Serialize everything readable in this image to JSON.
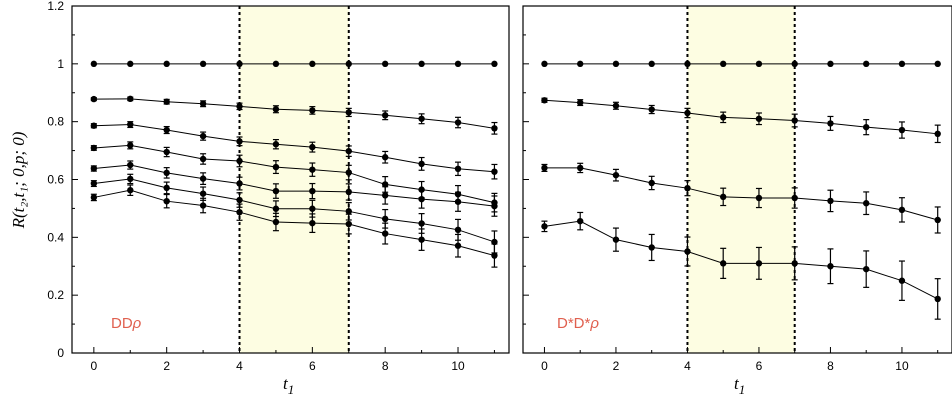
{
  "chart_data": [
    {
      "type": "line",
      "panel_label": "DD",
      "panel_label_symbol": "ρ",
      "xlabel": "t",
      "xlabel_sub": "1",
      "ylabel": "R(t₂,t₁; 0,p; 0)",
      "xlim": [
        -0.6,
        11.4
      ],
      "ylim": [
        0,
        1.2
      ],
      "x_ticks": [
        0,
        2,
        4,
        6,
        8,
        10
      ],
      "y_ticks": [
        "0",
        "0.2",
        "0.4",
        "0.6",
        "0.8",
        "1",
        "1.2"
      ],
      "shaded_region": [
        4,
        7
      ],
      "x": [
        0,
        1,
        2,
        3,
        4,
        5,
        6,
        7,
        8,
        9,
        10,
        11
      ],
      "series": [
        {
          "values": [
            1,
            1,
            1,
            1,
            1,
            1,
            1,
            1,
            1,
            1,
            1,
            1
          ],
          "errors": [
            0,
            0,
            0,
            0,
            0,
            0,
            0,
            0,
            0,
            0,
            0,
            0
          ]
        },
        {
          "values": [
            0.878,
            0.879,
            0.869,
            0.862,
            0.853,
            0.843,
            0.839,
            0.832,
            0.822,
            0.81,
            0.797,
            0.777
          ],
          "errors": [
            0.005,
            0.006,
            0.008,
            0.01,
            0.011,
            0.012,
            0.013,
            0.014,
            0.015,
            0.017,
            0.018,
            0.02
          ]
        },
        {
          "values": [
            0.786,
            0.79,
            0.771,
            0.75,
            0.732,
            0.722,
            0.712,
            0.698,
            0.677,
            0.654,
            0.637,
            0.627
          ],
          "errors": [
            0.007,
            0.01,
            0.012,
            0.014,
            0.015,
            0.016,
            0.017,
            0.018,
            0.02,
            0.022,
            0.023,
            0.025
          ]
        },
        {
          "values": [
            0.709,
            0.718,
            0.695,
            0.671,
            0.664,
            0.643,
            0.634,
            0.624,
            0.583,
            0.565,
            0.549,
            0.52
          ],
          "errors": [
            0.008,
            0.012,
            0.016,
            0.018,
            0.02,
            0.022,
            0.023,
            0.025,
            0.027,
            0.028,
            0.03,
            0.032
          ]
        },
        {
          "values": [
            0.638,
            0.65,
            0.623,
            0.603,
            0.586,
            0.56,
            0.56,
            0.557,
            0.545,
            0.532,
            0.523,
            0.508
          ],
          "errors": [
            0.009,
            0.014,
            0.018,
            0.02,
            0.022,
            0.025,
            0.026,
            0.028,
            0.03,
            0.031,
            0.033,
            0.035
          ]
        },
        {
          "values": [
            0.586,
            0.602,
            0.571,
            0.551,
            0.529,
            0.499,
            0.499,
            0.49,
            0.464,
            0.448,
            0.426,
            0.384
          ],
          "errors": [
            0.01,
            0.016,
            0.02,
            0.023,
            0.025,
            0.027,
            0.029,
            0.03,
            0.032,
            0.034,
            0.036,
            0.038
          ]
        },
        {
          "values": [
            0.538,
            0.563,
            0.525,
            0.51,
            0.487,
            0.453,
            0.449,
            0.446,
            0.413,
            0.392,
            0.371,
            0.337
          ],
          "errors": [
            0.011,
            0.018,
            0.023,
            0.025,
            0.028,
            0.03,
            0.032,
            0.034,
            0.036,
            0.037,
            0.039,
            0.04
          ]
        }
      ]
    },
    {
      "type": "line",
      "panel_label": "D*D*",
      "panel_label_symbol": "ρ",
      "xlabel": "t",
      "xlabel_sub": "1",
      "xlim": [
        -0.6,
        11.4
      ],
      "ylim": [
        0,
        1.2
      ],
      "x_ticks": [
        0,
        2,
        4,
        6,
        8,
        10
      ],
      "shaded_region": [
        4,
        7
      ],
      "x": [
        0,
        1,
        2,
        3,
        4,
        5,
        6,
        7,
        8,
        9,
        10,
        11
      ],
      "series": [
        {
          "values": [
            1,
            1,
            1,
            1,
            1,
            1,
            1,
            1,
            1,
            1,
            1,
            1
          ],
          "errors": [
            0,
            0,
            0,
            0,
            0,
            0,
            0,
            0,
            0,
            0,
            0,
            0
          ]
        },
        {
          "values": [
            0.874,
            0.866,
            0.855,
            0.842,
            0.83,
            0.815,
            0.81,
            0.804,
            0.794,
            0.781,
            0.771,
            0.758
          ],
          "errors": [
            0.007,
            0.01,
            0.012,
            0.014,
            0.016,
            0.018,
            0.02,
            0.022,
            0.024,
            0.026,
            0.028,
            0.03
          ]
        },
        {
          "values": [
            0.64,
            0.64,
            0.615,
            0.588,
            0.57,
            0.54,
            0.536,
            0.536,
            0.526,
            0.518,
            0.495,
            0.46
          ],
          "errors": [
            0.012,
            0.016,
            0.02,
            0.023,
            0.026,
            0.03,
            0.033,
            0.035,
            0.037,
            0.039,
            0.042,
            0.045
          ]
        },
        {
          "values": [
            0.438,
            0.456,
            0.392,
            0.365,
            0.351,
            0.31,
            0.31,
            0.31,
            0.3,
            0.29,
            0.25,
            0.187
          ],
          "errors": [
            0.018,
            0.03,
            0.04,
            0.045,
            0.05,
            0.052,
            0.055,
            0.057,
            0.06,
            0.063,
            0.068,
            0.07
          ]
        }
      ]
    }
  ],
  "colors": {
    "panel_label": "#e0604f",
    "shade": "#fdfde2",
    "ink": "#000000"
  }
}
